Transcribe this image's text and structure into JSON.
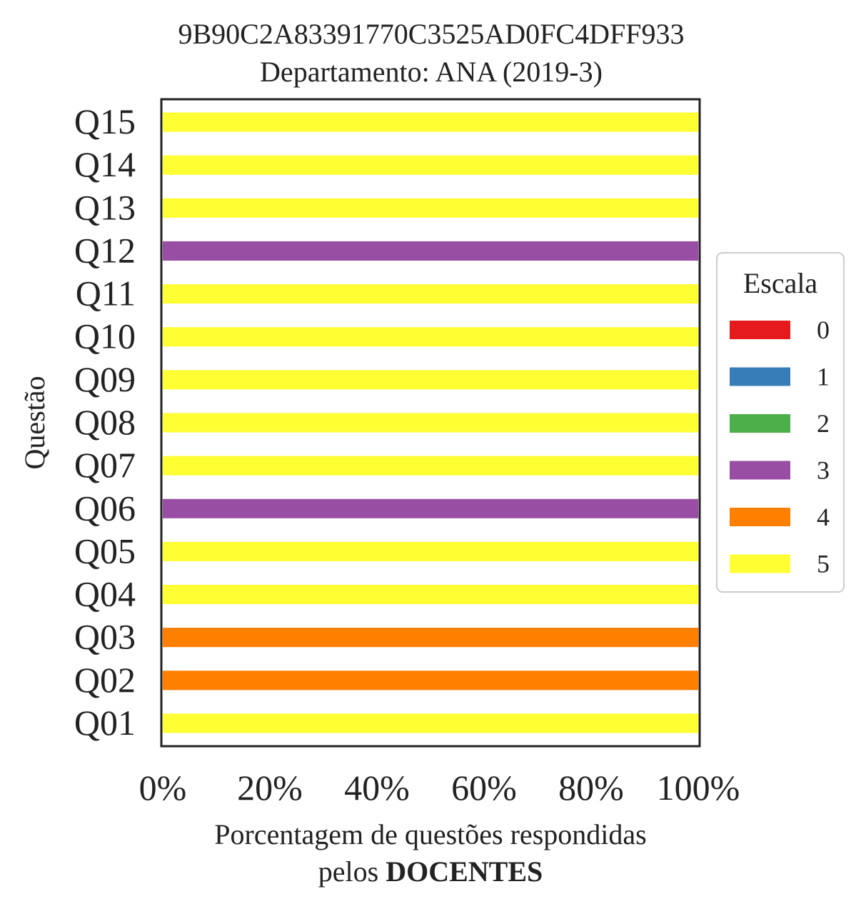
{
  "chart_data": {
    "type": "bar",
    "orientation": "horizontal",
    "stacked": true,
    "title": "9B90C2A83391770C3525AD0FC4DFF933",
    "subtitle": "Departamento: ANA (2019-3)",
    "xlabel_line1": "Porcentagem de questões respondidas",
    "xlabel_line2_prefix": "pelos ",
    "xlabel_line2_bold": "DOCENTES",
    "ylabel": "Questão",
    "xlim": [
      0,
      100
    ],
    "x_ticks": [
      "0%",
      "20%",
      "40%",
      "60%",
      "80%",
      "100%"
    ],
    "categories": [
      "Q01",
      "Q02",
      "Q03",
      "Q04",
      "Q05",
      "Q06",
      "Q07",
      "Q08",
      "Q09",
      "Q10",
      "Q11",
      "Q12",
      "Q13",
      "Q14",
      "Q15"
    ],
    "series": [
      {
        "name": "0",
        "color": "#e41a1c",
        "values": [
          0,
          0,
          0,
          0,
          0,
          0,
          0,
          0,
          0,
          0,
          0,
          0,
          0,
          0,
          0
        ]
      },
      {
        "name": "1",
        "color": "#377eb8",
        "values": [
          0,
          0,
          0,
          0,
          0,
          0,
          0,
          0,
          0,
          0,
          0,
          0,
          0,
          0,
          0
        ]
      },
      {
        "name": "2",
        "color": "#4daf4a",
        "values": [
          0,
          0,
          0,
          0,
          0,
          0,
          0,
          0,
          0,
          0,
          0,
          0,
          0,
          0,
          0
        ]
      },
      {
        "name": "3",
        "color": "#984ea3",
        "values": [
          0,
          0,
          0,
          0,
          0,
          100,
          0,
          0,
          0,
          0,
          0,
          100,
          0,
          0,
          0
        ]
      },
      {
        "name": "4",
        "color": "#ff7f00",
        "values": [
          0,
          100,
          100,
          0,
          0,
          0,
          0,
          0,
          0,
          0,
          0,
          0,
          0,
          0,
          0
        ]
      },
      {
        "name": "5",
        "color": "#ffff33",
        "values": [
          100,
          0,
          0,
          100,
          100,
          0,
          100,
          100,
          100,
          100,
          100,
          0,
          100,
          100,
          100
        ]
      }
    ],
    "legend": {
      "title": "Escala",
      "placement": "center-right"
    },
    "grid": false
  }
}
